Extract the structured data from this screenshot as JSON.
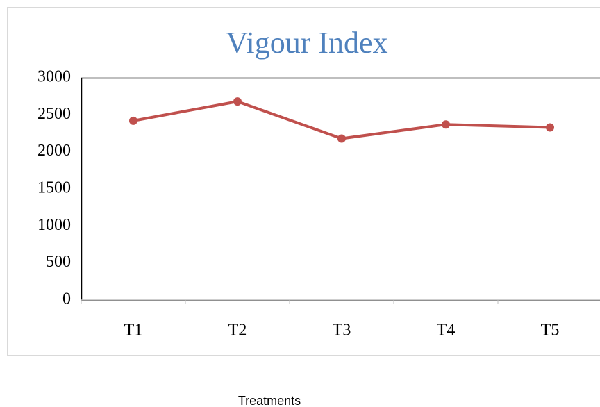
{
  "chart_data": {
    "type": "line",
    "title": "Vigour Index",
    "x_label": "Treatments",
    "categories": [
      "T1",
      "T2",
      "T3",
      "T4",
      "T5"
    ],
    "series": [
      {
        "name": "Vigour Index",
        "color": "#c0504d",
        "values": [
          2420,
          2680,
          2180,
          2370,
          2330
        ]
      }
    ],
    "ylim": [
      0,
      3000
    ],
    "yticks": [
      0,
      500,
      1000,
      1500,
      2000,
      2500,
      3000
    ],
    "grid": false
  }
}
